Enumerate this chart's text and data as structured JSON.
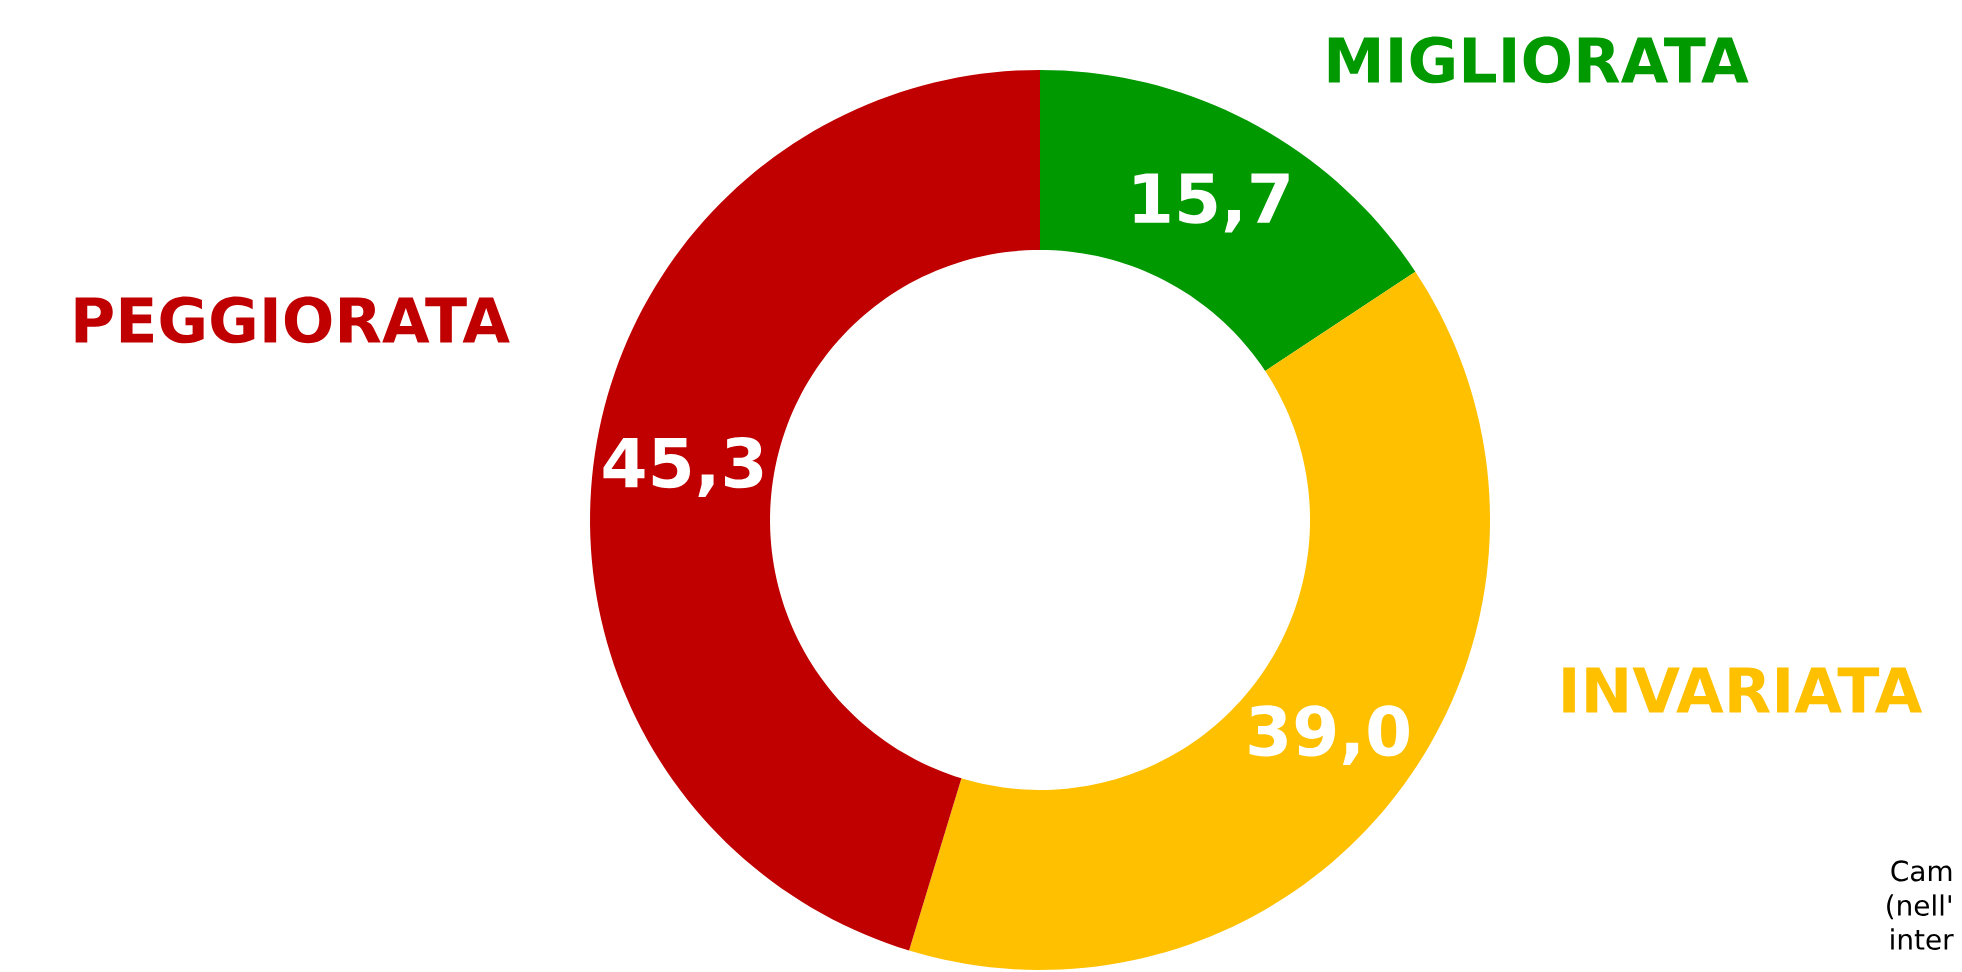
{
  "chart_data": {
    "type": "donut",
    "categories": [
      "MIGLIORATA",
      "INVARIATA",
      "PEGGIORATA"
    ],
    "values": [
      15.7,
      39.0,
      45.3
    ],
    "value_labels": [
      "15,7",
      "39,0",
      "45,3"
    ],
    "colors": [
      "#009900",
      "#ffc000",
      "#c00000"
    ],
    "annotations": [
      "Cam",
      "(nell'",
      "inter"
    ]
  }
}
